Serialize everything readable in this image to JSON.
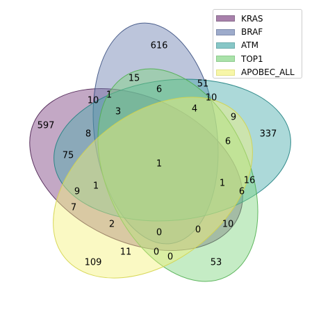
{
  "sets": [
    {
      "name": "KRAS",
      "fill": "#7a3d7f",
      "edge": "#4a1f50"
    },
    {
      "name": "BRAF",
      "fill": "#6a7fb0",
      "edge": "#3b5081"
    },
    {
      "name": "ATM",
      "fill": "#48aaaa",
      "edge": "#1f8080"
    },
    {
      "name": "TOP1",
      "fill": "#7ed47e",
      "edge": "#4fae4f"
    },
    {
      "name": "APOBEC_ALL",
      "fill": "#f3f27a",
      "edge": "#d4d44a"
    }
  ],
  "regions": [
    {
      "id": "KRAS",
      "count": "597"
    },
    {
      "id": "BRAF",
      "count": "616"
    },
    {
      "id": "ATM",
      "count": "337"
    },
    {
      "id": "TOP1",
      "count": "53"
    },
    {
      "id": "APOBEC_ALL",
      "count": "109"
    },
    {
      "id": "BRAF_TOP1",
      "count": "15"
    },
    {
      "id": "BRAF_ATM",
      "count": "51"
    },
    {
      "id": "KRAS_BRAF",
      "count": "10"
    },
    {
      "id": "r_1a",
      "count": "1"
    },
    {
      "id": "r_6a",
      "count": "6"
    },
    {
      "id": "r_10a",
      "count": "10"
    },
    {
      "id": "r_3",
      "count": "3"
    },
    {
      "id": "r_4",
      "count": "4"
    },
    {
      "id": "r_9a",
      "count": "9"
    },
    {
      "id": "r_8",
      "count": "8"
    },
    {
      "id": "r_6b",
      "count": "6"
    },
    {
      "id": "r_75",
      "count": "75"
    },
    {
      "id": "all_five",
      "count": "1"
    },
    {
      "id": "r_16",
      "count": "16"
    },
    {
      "id": "r_1b",
      "count": "1"
    },
    {
      "id": "r_1c",
      "count": "1"
    },
    {
      "id": "r_9b",
      "count": "9"
    },
    {
      "id": "r_6c",
      "count": "6"
    },
    {
      "id": "r_7",
      "count": "7"
    },
    {
      "id": "r_2",
      "count": "2"
    },
    {
      "id": "r_10b",
      "count": "10"
    },
    {
      "id": "r_0a",
      "count": "0"
    },
    {
      "id": "r_0b",
      "count": "0"
    },
    {
      "id": "r_11",
      "count": "11"
    },
    {
      "id": "r_0c",
      "count": "0"
    },
    {
      "id": "r_0d",
      "count": "0"
    }
  ]
}
